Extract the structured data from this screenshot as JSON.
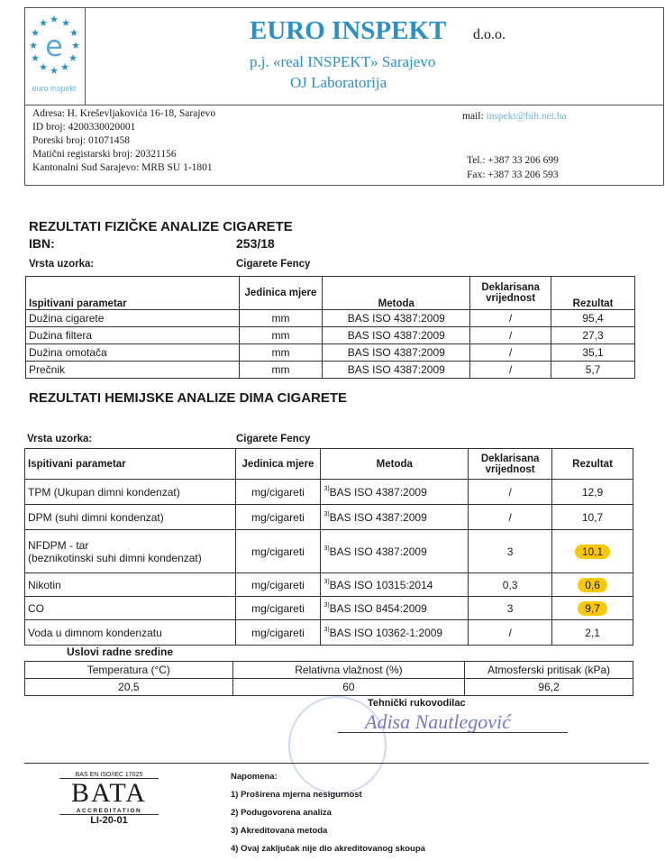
{
  "letterhead": {
    "logo_text": "euro inspekt",
    "company": "EURO INSPEKT",
    "company_suffix": "d.o.o.",
    "branch": "p.j. «real INSPEKT» Sarajevo",
    "unit": "OJ Laboratorija",
    "address": "Adresa: H. Kreševljakovića 16-18, Sarajevo",
    "id_number": "ID broj: 4200330020001",
    "tax_number": "Poreski broj: 01071458",
    "registry_number": "Matični registarski broj: 20321156",
    "court": "Kantonalni Sud Sarajevo: MRB SU 1-1801",
    "mail_label": "mail:",
    "mail_value": "inspekt@bih.net.ba",
    "tel": "Tel.: +387 33 206 699",
    "fax": "Fax: +387 33 206 593",
    "brand_color": "#2a8fc4"
  },
  "physical": {
    "title": "REZULTATI  FIZIČKE  ANALIZE CIGARETE",
    "ibn_label": "IBN:",
    "ibn_value": "253/18",
    "sample_label": "Vrsta uzorka:",
    "sample_value": "Cigarete Fency",
    "headers": [
      "Ispitivani parametar",
      "Jedinica mjere",
      "Metoda",
      "Deklarisana vrijednost",
      "Rezultat"
    ],
    "rows": [
      [
        "Dužina cigarete",
        "mm",
        "BAS ISO 4387:2009",
        "/",
        "95,4"
      ],
      [
        "Dužina filtera",
        "mm",
        "BAS ISO 4387:2009",
        "/",
        "27,3"
      ],
      [
        "Dužina omotača",
        "mm",
        "BAS ISO 4387:2009",
        "/",
        "35,1"
      ],
      [
        "Prečnik",
        "mm",
        "BAS ISO 4387:2009",
        "/",
        "5,7"
      ]
    ]
  },
  "chemical": {
    "title": "REZULTATI  HEMIJSKE  ANALIZE DIMA CIGARETE",
    "sample_label": "Vrsta uzorka:",
    "sample_value": "Cigarete Fency",
    "headers": [
      "Ispitivani parametar",
      "Jedinica mjere",
      "Metoda",
      "Deklarisana vrijednost",
      "Rezultat"
    ],
    "method_footnote": "3)",
    "highlight_color": "#f9c800",
    "rows": [
      {
        "param": "TPM (Ukupan dimni kondenzat)",
        "unit": "mg/cigareti",
        "method": "BAS ISO 4387:2009",
        "declared": "/",
        "result": "12,9",
        "highlighted": false
      },
      {
        "param": "DPM (suhi dimni kondenzat)",
        "unit": "mg/cigareti",
        "method": "BAS ISO 4387:2009",
        "declared": "/",
        "result": "10,7",
        "highlighted": false
      },
      {
        "param": "NFDPM - tar",
        "param2": "(beznikotinski suhi dimni kondenzat)",
        "unit": "mg/cigareti",
        "method": "BAS ISO 4387:2009",
        "declared": "3",
        "result": "10,1",
        "highlighted": true
      },
      {
        "param": "Nikotin",
        "unit": "mg/cigareti",
        "method": "BAS ISO 10315:2014",
        "declared": "0,3",
        "result": "0,6",
        "highlighted": true
      },
      {
        "param": "CO",
        "unit": "mg/cigareti",
        "method": "BAS ISO 8454:2009",
        "declared": "3",
        "result": "9,7",
        "highlighted": true
      },
      {
        "param": "Voda u dimnom kondenzatu",
        "unit": "mg/cigareti",
        "method": "BAS ISO 10362-1:2009",
        "declared": "/",
        "result": "2,1",
        "highlighted": false
      }
    ]
  },
  "conditions": {
    "title": "Uslovi radne sredine",
    "headers": [
      "Temperatura (°C)",
      "Relativna vlažnost (%)",
      "Atmosferski pritisak (kPa)"
    ],
    "values": [
      "20,5",
      "60",
      "96,2"
    ]
  },
  "signature": {
    "label": "Tehnički rukovodilac",
    "signature_text": "Adisa Nautlegović"
  },
  "accreditation": {
    "standard": "BAS EN ISO/IEC 17025",
    "logo_text": "BATA",
    "logo_subtext": "ACCREDITATION",
    "code": "LI-20-01"
  },
  "notes": {
    "title": "Napomena:",
    "items": [
      "1) Proširena mjerna nesigurnost",
      "2) Podugovorena analiza",
      "3) Akreditovana metoda",
      "4) Ovaj zaključak nije dio akreditovanog skoupa"
    ]
  }
}
